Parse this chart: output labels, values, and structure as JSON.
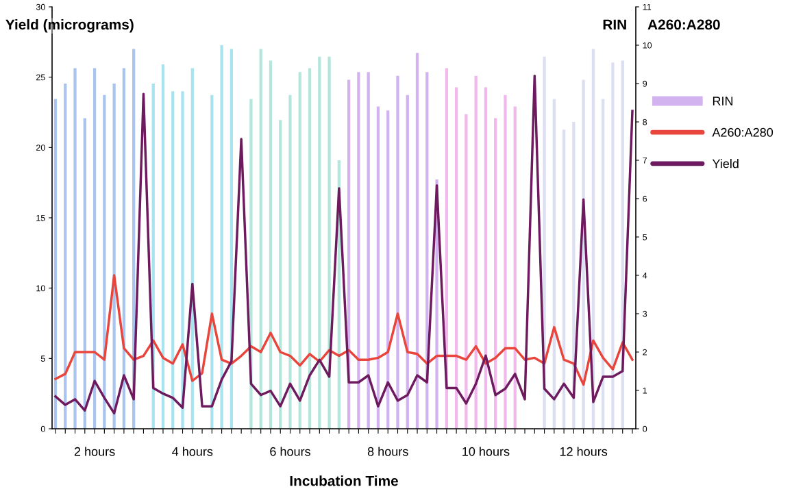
{
  "chart_data": {
    "type": "bar",
    "xlabel": "Incubation Time",
    "ylabel": "Yield (micrograms)",
    "y2label": "RIN",
    "annotations": [
      "A260:A280"
    ],
    "categories": [
      null,
      null,
      null,
      null,
      "2 hours",
      null,
      null,
      null,
      null,
      null,
      null,
      null,
      null,
      null,
      "4 hours",
      null,
      null,
      null,
      null,
      null,
      null,
      null,
      null,
      null,
      "6 hours",
      null,
      null,
      null,
      null,
      null,
      null,
      null,
      null,
      null,
      "8 hours",
      null,
      null,
      null,
      null,
      null,
      null,
      null,
      null,
      null,
      "10 hours",
      null,
      null,
      null,
      null,
      null,
      null,
      null,
      null,
      null,
      "12 hours",
      null,
      null,
      null,
      null,
      null
    ],
    "series": [
      {
        "name": "RIN",
        "axis": "y2",
        "colors": [
          "#a9c4ee",
          "#a9c4ee",
          "#a9c4ee",
          "#a9c4ee",
          "#a9c4ee",
          "#a9c4ee",
          "#a9c4ee",
          "#a9c4ee",
          "#a9c4ee",
          "#a9c4ee",
          "#a8e3f0",
          "#a8e3f0",
          "#a8e3f0",
          "#a8e3f0",
          "#a8e3f0",
          "#a8e3f0",
          "#a8e3f0",
          "#a8e3f0",
          "#a8e3f0",
          "#a8e3f0",
          "#b5e6dc",
          "#b5e6dc",
          "#b5e6dc",
          "#b5e6dc",
          "#b5e6dc",
          "#b5e6dc",
          "#b5e6dc",
          "#b5e6dc",
          "#b5e6dc",
          "#b5e6dc",
          "#d2b3f0",
          "#d2b3f0",
          "#d2b3f0",
          "#d2b3f0",
          "#d2b3f0",
          "#d2b3f0",
          "#d2b3f0",
          "#d2b3f0",
          "#d2b3f0",
          "#d2b3f0",
          "#f0b8ec",
          "#f0b8ec",
          "#f0b8ec",
          "#f0b8ec",
          "#f0b8ec",
          "#f0b8ec",
          "#f0b8ec",
          "#f0b8ec",
          "#f0b8ec",
          "#f0b8ec",
          "#dcdff2",
          "#dcdff2",
          "#dcdff2",
          "#dcdff2",
          "#dcdff2",
          "#dcdff2",
          "#dcdff2",
          "#dcdff2",
          "#dcdff2",
          "#dcdff2"
        ],
        "values": [
          8.6,
          9.0,
          9.4,
          8.1,
          9.4,
          8.7,
          9.0,
          9.4,
          9.9,
          null,
          9.0,
          9.5,
          8.8,
          8.8,
          9.4,
          null,
          8.7,
          10.0,
          9.9,
          null,
          8.6,
          9.9,
          9.6,
          8.05,
          8.7,
          9.3,
          9.4,
          9.7,
          9.7,
          7.0,
          9.1,
          9.3,
          9.3,
          8.4,
          8.3,
          9.2,
          8.7,
          9.8,
          9.3,
          6.5,
          9.4,
          8.9,
          8.2,
          9.2,
          8.9,
          8.1,
          8.7,
          8.4,
          null,
          null,
          9.7,
          8.6,
          7.8,
          8.0,
          9.1,
          9.9,
          8.6,
          9.55,
          9.6,
          null
        ]
      },
      {
        "name": "A260:A280",
        "type": "line",
        "axis": "y2",
        "color": "#e8453c",
        "values": [
          1.3,
          1.43,
          2.0,
          2.0,
          2.0,
          1.8,
          4.0,
          2.1,
          1.8,
          1.9,
          2.3,
          1.85,
          1.7,
          2.2,
          1.25,
          1.45,
          3.0,
          1.8,
          1.7,
          1.9,
          2.15,
          2.0,
          2.5,
          2.0,
          1.9,
          1.65,
          1.95,
          1.75,
          2.05,
          1.9,
          2.05,
          1.8,
          1.8,
          1.85,
          2.0,
          3.0,
          2.0,
          1.95,
          1.7,
          1.9,
          1.9,
          1.9,
          1.8,
          2.15,
          1.7,
          1.85,
          2.1,
          2.1,
          1.8,
          1.85,
          1.7,
          2.65,
          1.8,
          1.7,
          1.15,
          2.3,
          1.85,
          1.55,
          2.25,
          1.8
        ]
      },
      {
        "name": "Yield",
        "type": "line",
        "color": "#6e1a5e",
        "values": [
          2.3,
          1.7,
          2.1,
          1.3,
          3.4,
          2.2,
          1.1,
          3.8,
          2.1,
          23.8,
          2.9,
          2.5,
          2.2,
          1.5,
          10.3,
          1.6,
          1.6,
          3.5,
          4.8,
          20.6,
          3.2,
          2.4,
          2.7,
          1.6,
          3.2,
          2.0,
          3.8,
          4.9,
          3.7,
          17.1,
          3.3,
          3.3,
          3.8,
          1.6,
          3.3,
          2.0,
          2.4,
          3.8,
          3.3,
          17.3,
          2.9,
          2.9,
          1.8,
          3.2,
          5.2,
          2.4,
          2.85,
          3.9,
          2.1,
          25.1,
          2.85,
          2.1,
          3.2,
          2.2,
          16.3,
          1.9,
          3.7,
          3.7,
          4.1,
          22.6
        ]
      }
    ],
    "ylim": [
      0,
      30
    ],
    "yticks": [
      0,
      5,
      10,
      15,
      20,
      25,
      30
    ],
    "y2lim": [
      0,
      11
    ],
    "y2ticks": [
      0,
      1,
      2,
      3,
      4,
      5,
      6,
      7,
      8,
      9,
      10,
      11
    ],
    "grid": false,
    "legend": "right"
  }
}
